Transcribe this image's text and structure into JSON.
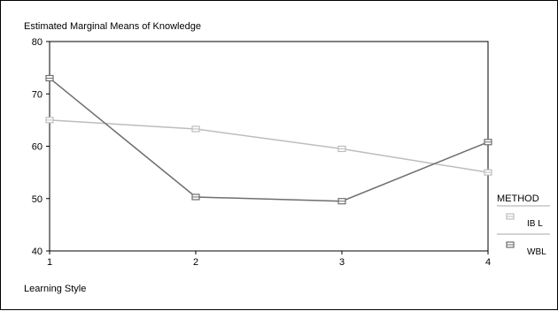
{
  "chart_data": {
    "type": "line",
    "title": "Estimated Marginal Means of Knowledge",
    "xlabel": "Learning Style",
    "ylabel": "",
    "categories": [
      "1",
      "2",
      "3",
      "4"
    ],
    "ylim": [
      40,
      80
    ],
    "yticks": [
      "40",
      "50",
      "60",
      "70",
      "80"
    ],
    "legend_title": "METHOD",
    "legend_placement": "right",
    "grid": false,
    "series": [
      {
        "name": "IB L",
        "values": [
          65.0,
          63.3,
          59.5,
          55.0
        ],
        "color": "#bdbdbd"
      },
      {
        "name": "WBL",
        "values": [
          73.0,
          50.3,
          49.5,
          60.8
        ],
        "color": "#6e6e6e"
      }
    ]
  }
}
